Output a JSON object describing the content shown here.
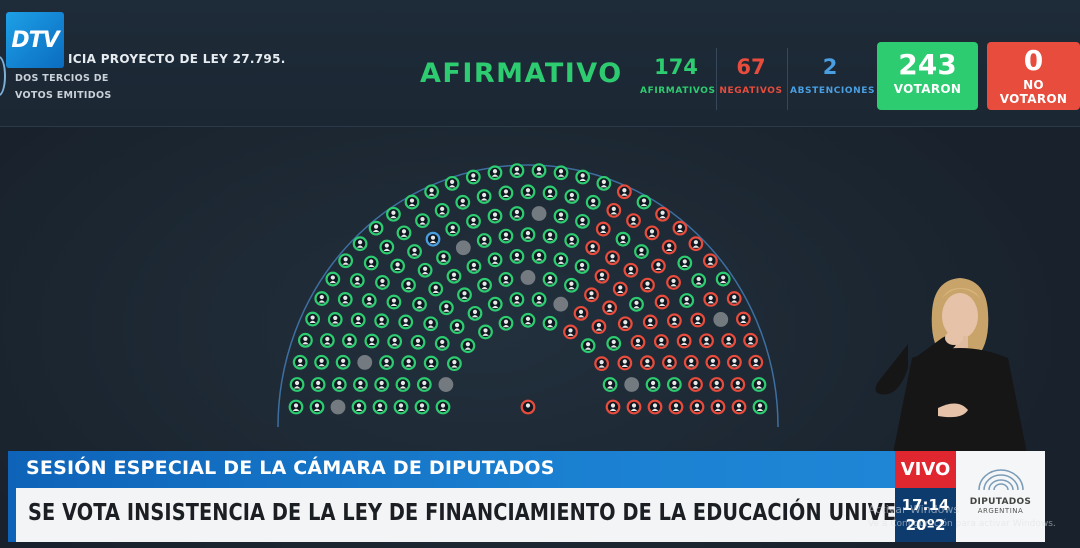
{
  "header": {
    "logo_text": "DTV",
    "law_title": "ICIA PROYECTO DE LEY 27.795.",
    "requirement_line1": "DOS TERCIOS DE",
    "requirement_line2": "VOTOS EMITIDOS",
    "result": "AFIRMATIVO"
  },
  "stats": {
    "afirmativos": {
      "value": "174",
      "label": "AFIRMATIVOS",
      "color": "#2ecc71"
    },
    "negativos": {
      "value": "67",
      "label": "NEGATIVOS",
      "color": "#e74c3c"
    },
    "abstenciones": {
      "value": "2",
      "label": "ABSTENCIONES",
      "color": "#4a9fe2"
    },
    "votaron": {
      "value": "243",
      "label": "VOTARON"
    },
    "no_votaron": {
      "value": "0",
      "label_line1": "NO",
      "label_line2": "VOTARON"
    }
  },
  "lower_third": {
    "kicker": "SESIÓN ESPECIAL DE LA CÁMARA DE DIPUTADOS",
    "headline": "SE VOTA INSISTENCIA DE LA LEY DE FINANCIAMIENTO DE LA EDUCACIÓN UNIVERSITARIA",
    "live": "VIVO",
    "time": "17:14",
    "temperature": "20º2",
    "org_name": "DIPUTADOS",
    "org_country": "ARGENTINA"
  },
  "watermark": {
    "line1": "Activar Windows",
    "line2": "Ve a Configuración para activar Windows."
  },
  "colors": {
    "afirmativo": "#2ecc71",
    "negativo": "#e74c3c",
    "abstencion": "#4a9fe2",
    "ausente": "#8a8f94"
  },
  "icons": [
    "logo-dtv",
    "hemicycle-seat-icon",
    "congress-dome-icon",
    "interpreter-figure"
  ]
}
